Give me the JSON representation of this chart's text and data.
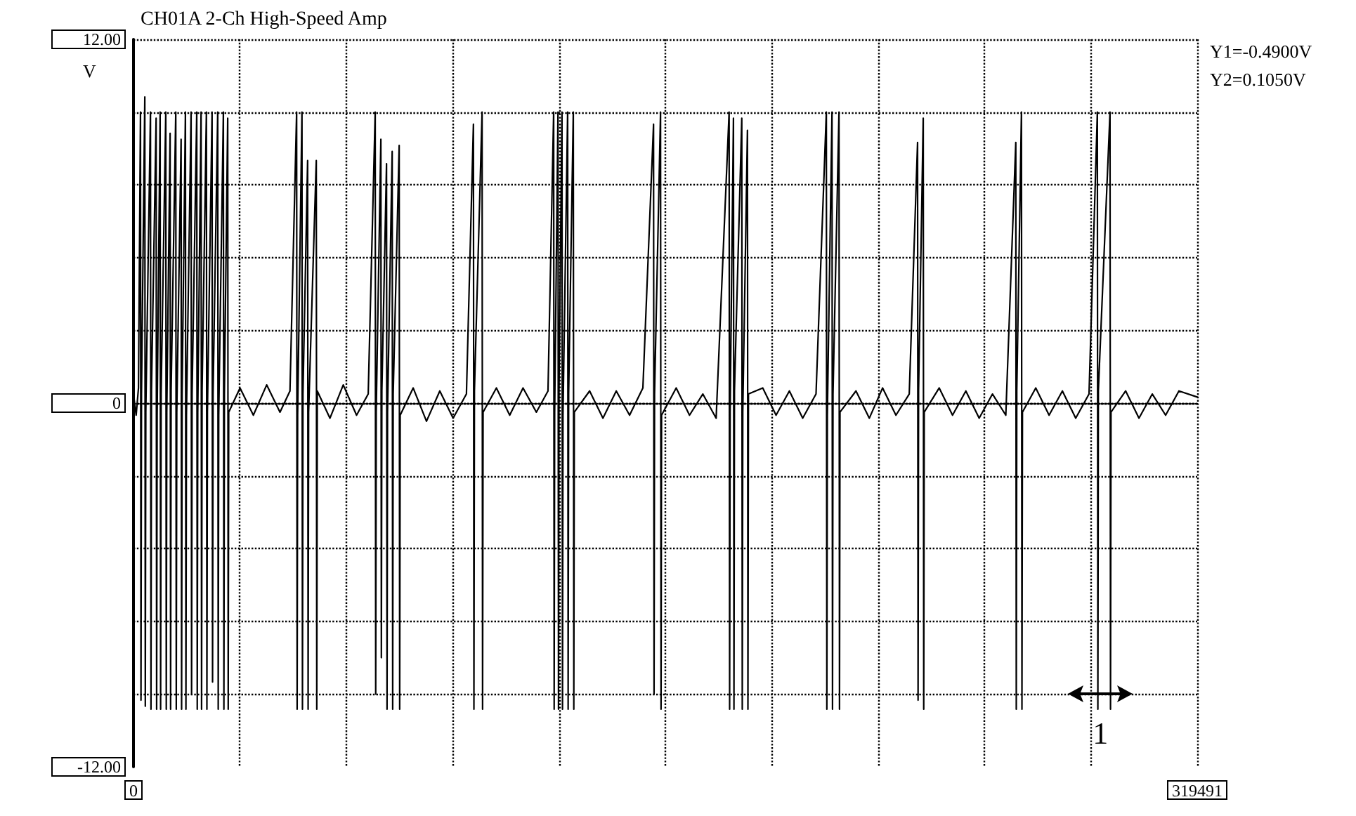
{
  "chart_data": {
    "type": "line",
    "title": "CH01A 2-Ch High-Speed Amp",
    "ylabel": "V",
    "annotations": [
      "Y1=-0.4900V",
      "Y2=0.1050V",
      {
        "text": "1",
        "x": 290400,
        "y": -9.6
      }
    ],
    "xlim": [
      0,
      319491
    ],
    "xticks": [
      {
        "value": 0,
        "label": "0"
      },
      {
        "value": 31949.1,
        "label": null
      },
      {
        "value": 63898.2,
        "label": null
      },
      {
        "value": 95847.3,
        "label": null
      },
      {
        "value": 127796.4,
        "label": null
      },
      {
        "value": 159745.5,
        "label": null
      },
      {
        "value": 191694.6,
        "label": null
      },
      {
        "value": 223643.7,
        "label": null
      },
      {
        "value": 255592.8,
        "label": null
      },
      {
        "value": 287541.9,
        "label": null
      },
      {
        "value": 319491,
        "label": "319491"
      }
    ],
    "ylim": [
      -12,
      12
    ],
    "yticks": [
      {
        "value": -12,
        "label": "-12.00"
      },
      {
        "value": -9.6,
        "label": null
      },
      {
        "value": -7.2,
        "label": null
      },
      {
        "value": -4.8,
        "label": null
      },
      {
        "value": -2.4,
        "label": null
      },
      0,
      {
        "value": 2.4,
        "label": null
      },
      {
        "value": 4.8,
        "label": null
      },
      {
        "value": 7.2,
        "label": null
      },
      {
        "value": 9.6,
        "label": null
      },
      {
        "value": 12,
        "label": "12.00"
      }
    ],
    "grid": true,
    "marker": "none",
    "line_style": "solid",
    "series": [
      {
        "color": "#000000",
        "x": [
          0,
          800,
          1500,
          2100,
          2250,
          2400,
          3400,
          3550,
          3700,
          5100,
          5250,
          5400,
          6800,
          6950,
          7100,
          8000,
          8150,
          8300,
          9700,
          9850,
          10000,
          11000,
          11150,
          11300,
          12700,
          12850,
          13000,
          14300,
          14450,
          14600,
          15600,
          15750,
          15900,
          17300,
          17450,
          17600,
          19000,
          19150,
          19300,
          20300,
          20450,
          20600,
          21900,
          22050,
          22200,
          23600,
          23750,
          23900,
          25300,
          25450,
          25600,
          27000,
          27150,
          27300,
          28300,
          28450,
          28600,
          32000,
          36000,
          40000,
          44000,
          47000,
          49000,
          49150,
          49300,
          50600,
          50750,
          50900,
          52300,
          52450,
          52600,
          54900,
          55050,
          55200,
          59000,
          63000,
          67000,
          70500,
          72600,
          72750,
          72900,
          74300,
          74450,
          74600,
          76000,
          76150,
          76300,
          77700,
          77850,
          78000,
          79800,
          79950,
          80100,
          84000,
          88000,
          92000,
          96000,
          100000,
          102100,
          102250,
          102400,
          104700,
          104850,
          105000,
          109000,
          113000,
          117000,
          121000,
          124500,
          126200,
          126350,
          126500,
          127500,
          127650,
          127800,
          128700,
          128850,
          129000,
          130400,
          130550,
          130700,
          132100,
          132250,
          132400,
          137000,
          141000,
          145000,
          149000,
          153000,
          156200,
          156350,
          156500,
          158300,
          158450,
          158600,
          163000,
          167000,
          171000,
          175000,
          178900,
          179050,
          179200,
          180200,
          180350,
          180500,
          182700,
          182850,
          183000,
          184400,
          184550,
          184700,
          189000,
          193000,
          197000,
          201000,
          205000,
          208100,
          208250,
          208400,
          209800,
          209950,
          210100,
          211900,
          212050,
          212200,
          217000,
          221000,
          225000,
          229000,
          233000,
          235500,
          235650,
          235800,
          237200,
          237350,
          237500,
          242000,
          246000,
          250000,
          254000,
          258000,
          262000,
          265000,
          265150,
          265300,
          266700,
          266850,
          267000,
          271000,
          275000,
          279000,
          283000,
          287000,
          289500,
          289650,
          289800,
          293300,
          293450,
          293600,
          298000,
          302000,
          306000,
          310000,
          314000,
          319491
        ],
        "values": [
          0.3,
          -0.4,
          0.5,
          9.6,
          -9.8,
          0.3,
          10.1,
          -10.0,
          -0.3,
          9.6,
          -10.1,
          0.4,
          9.4,
          -10.1,
          -0.4,
          9.6,
          -10.1,
          0.3,
          9.6,
          -10.1,
          -0.3,
          8.9,
          -10.1,
          0.4,
          9.6,
          -10.1,
          -0.3,
          8.7,
          -10.1,
          0.3,
          9.6,
          -10.1,
          -0.4,
          9.6,
          -9.6,
          0.3,
          9.6,
          -10.1,
          -0.3,
          9.6,
          -10.1,
          0.4,
          9.6,
          -10.1,
          -0.3,
          9.6,
          -9.2,
          0.3,
          9.6,
          -10.1,
          -0.4,
          9.6,
          -10.1,
          0.3,
          9.4,
          -10.1,
          -0.3,
          0.5,
          -0.4,
          0.6,
          -0.3,
          0.4,
          9.6,
          -10.1,
          -0.4,
          9.6,
          -10.1,
          0.3,
          8.0,
          -10.1,
          -0.3,
          8.0,
          -10.1,
          0.4,
          -0.5,
          0.6,
          -0.4,
          0.3,
          9.6,
          -9.6,
          -0.3,
          8.7,
          -8.4,
          0.4,
          7.9,
          -10.1,
          -0.3,
          8.3,
          -10.1,
          0.3,
          8.5,
          -10.1,
          -0.4,
          0.5,
          -0.6,
          0.4,
          -0.5,
          0.3,
          9.2,
          -10.1,
          0.4,
          9.6,
          -10.1,
          -0.3,
          0.5,
          -0.4,
          0.5,
          -0.3,
          0.4,
          9.6,
          -10.1,
          -0.3,
          9.6,
          -10.1,
          0.4,
          9.6,
          -10.1,
          -0.4,
          9.6,
          -10.1,
          0.3,
          9.6,
          -10.1,
          -0.3,
          0.4,
          -0.5,
          0.4,
          -0.4,
          0.5,
          9.2,
          -9.6,
          0.3,
          9.6,
          -10.1,
          -0.4,
          0.5,
          -0.4,
          0.3,
          -0.5,
          9.6,
          -10.1,
          -0.3,
          9.4,
          -10.1,
          0.4,
          9.4,
          -10.1,
          -0.3,
          9.0,
          -10.1,
          0.3,
          0.5,
          -0.4,
          0.4,
          -0.5,
          0.3,
          9.6,
          -10.1,
          -0.4,
          9.6,
          -10.1,
          0.3,
          9.6,
          -10.1,
          -0.3,
          0.4,
          -0.5,
          0.5,
          -0.4,
          0.3,
          8.6,
          -9.8,
          0.4,
          9.4,
          -10.1,
          -0.3,
          0.5,
          -0.4,
          0.4,
          -0.5,
          0.3,
          -0.4,
          8.6,
          -10.1,
          0.4,
          9.6,
          -10.1,
          -0.3,
          0.5,
          -0.4,
          0.4,
          -0.5,
          0.3,
          9.6,
          -10.1,
          0.4,
          9.6,
          -10.1,
          -0.3,
          0.4,
          -0.5,
          0.3,
          -0.4,
          0.4,
          0.2
        ]
      }
    ]
  }
}
